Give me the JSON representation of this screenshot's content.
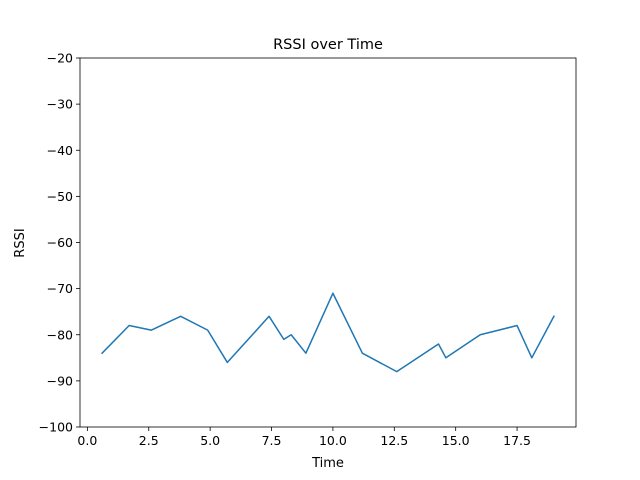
{
  "chart_data": {
    "type": "line",
    "title": "RSSI over Time",
    "xlabel": "Time",
    "ylabel": "RSSI",
    "xlim": [
      -0.3,
      19.9
    ],
    "ylim": [
      -100,
      -20
    ],
    "xticks": [
      0.0,
      2.5,
      5.0,
      7.5,
      10.0,
      12.5,
      15.0,
      17.5
    ],
    "xtick_labels": [
      "0.0",
      "2.5",
      "5.0",
      "7.5",
      "10.0",
      "12.5",
      "15.0",
      "17.5"
    ],
    "yticks": [
      -100,
      -90,
      -80,
      -70,
      -60,
      -50,
      -40,
      -30,
      -20
    ],
    "ytick_labels": [
      "−100",
      "−90",
      "−80",
      "−70",
      "−60",
      "−50",
      "−40",
      "−30",
      "−20"
    ],
    "grid": false,
    "legend": "none",
    "series": [
      {
        "color": "#1f77b4",
        "x": [
          0.6,
          1.7,
          2.6,
          3.8,
          4.9,
          5.7,
          7.4,
          8.0,
          8.3,
          8.9,
          10.0,
          11.2,
          12.6,
          14.3,
          14.6,
          16.0,
          17.5,
          18.1,
          19.0
        ],
        "y": [
          -84,
          -78,
          -79,
          -76,
          -79,
          -86,
          -76,
          -81,
          -80,
          -84,
          -71,
          -84,
          -88,
          -82,
          -85,
          -80,
          -78,
          -85,
          -76
        ]
      }
    ]
  }
}
